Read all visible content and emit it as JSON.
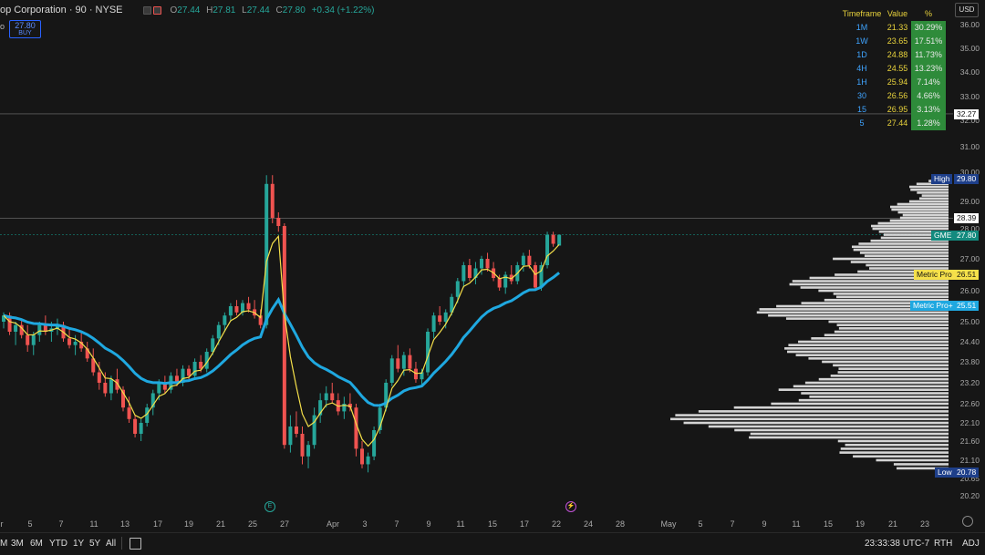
{
  "header": {
    "symbol_text": "op Corporation · 90 · NYSE",
    "ohlc": {
      "o_label": "O",
      "o": "27.44",
      "h_label": "H",
      "h": "27.81",
      "l_label": "L",
      "l": "27.44",
      "c_label": "C",
      "c": "27.80",
      "change": "+0.34 (+1.22%)"
    }
  },
  "side_label": "o",
  "buy_box": {
    "price": "27.80",
    "label": "BUY"
  },
  "currency_button": "USD",
  "timeframe_table": {
    "headers": [
      "Timeframe",
      "Value",
      "%"
    ],
    "rows": [
      {
        "tf": "1M",
        "value": "21.33",
        "pct": "30.29%"
      },
      {
        "tf": "1W",
        "value": "23.65",
        "pct": "17.51%"
      },
      {
        "tf": "1D",
        "value": "24.88",
        "pct": "11.73%"
      },
      {
        "tf": "4H",
        "value": "24.55",
        "pct": "13.23%"
      },
      {
        "tf": "1H",
        "value": "25.94",
        "pct": "7.14%"
      },
      {
        "tf": "30",
        "value": "26.56",
        "pct": "4.66%"
      },
      {
        "tf": "15",
        "value": "26.95",
        "pct": "3.13%"
      },
      {
        "tf": "5",
        "value": "27.44",
        "pct": "1.28%"
      }
    ]
  },
  "price_axis": {
    "ticks": [
      "36.00",
      "35.00",
      "34.00",
      "33.00",
      "32.00",
      "31.00",
      "30.00",
      "29.00",
      "28.00",
      "27.00",
      "26.00",
      "25.00",
      "24.40",
      "23.80",
      "23.20",
      "22.60",
      "22.10",
      "21.60",
      "21.10",
      "20.65",
      "20.20"
    ],
    "tags": {
      "line_32": "32.27",
      "high_label": "High",
      "high": "29.80",
      "line_28": "28.39",
      "gme_label": "GME",
      "gme": "27.80",
      "metric_pro_label": "Metric Pro",
      "metric_pro": "26.51",
      "metric_pro_plus_label": "Metric Pro+",
      "metric_pro_plus": "25.51",
      "low_label": "Low",
      "low": "20.78"
    }
  },
  "time_axis": [
    "r",
    "5",
    "7",
    "11",
    "13",
    "17",
    "19",
    "21",
    "25",
    "27",
    "Apr",
    "3",
    "7",
    "9",
    "11",
    "15",
    "17",
    "22",
    "24",
    "28",
    "May",
    "5",
    "7",
    "9",
    "11",
    "15",
    "19",
    "21",
    "23"
  ],
  "events": {
    "earnings": "E",
    "dividend": "⚡"
  },
  "bottom_bar": {
    "ranges": [
      "M",
      "3M",
      "6M",
      "YTD",
      "1Y",
      "5Y",
      "All"
    ],
    "clock": "23:33:38 UTC-7",
    "session": "RTH",
    "adj": "ADJ"
  },
  "colors": {
    "bg": "#161616",
    "up": "#26a69a",
    "down": "#ef5350",
    "ma_fast": "#f5e04a",
    "ma_slow": "#1fa8e0",
    "profile": "#e6e6e6",
    "table_green": "#2e8b3a"
  },
  "chart_data": {
    "type": "candlestick",
    "price_range": [
      20.2,
      36.0
    ],
    "candles": [
      [
        25.0,
        25.3,
        24.8,
        25.2
      ],
      [
        25.2,
        25.3,
        24.6,
        24.7
      ],
      [
        24.7,
        25.0,
        24.3,
        24.9
      ],
      [
        24.9,
        25.1,
        24.5,
        24.6
      ],
      [
        24.6,
        24.9,
        24.1,
        24.3
      ],
      [
        24.3,
        24.7,
        24.0,
        24.6
      ],
      [
        24.6,
        25.0,
        24.4,
        24.9
      ],
      [
        24.9,
        25.2,
        24.6,
        24.7
      ],
      [
        24.7,
        25.0,
        24.4,
        24.8
      ],
      [
        24.8,
        25.1,
        24.6,
        24.9
      ],
      [
        24.9,
        25.0,
        24.4,
        24.5
      ],
      [
        24.5,
        24.8,
        24.2,
        24.3
      ],
      [
        24.3,
        24.6,
        24.0,
        24.4
      ],
      [
        24.4,
        24.7,
        24.1,
        24.2
      ],
      [
        24.2,
        24.4,
        23.8,
        23.9
      ],
      [
        23.9,
        24.2,
        23.4,
        23.5
      ],
      [
        23.5,
        23.8,
        23.0,
        23.2
      ],
      [
        23.2,
        23.5,
        22.8,
        22.9
      ],
      [
        22.9,
        23.4,
        22.7,
        23.3
      ],
      [
        23.3,
        23.6,
        22.9,
        23.0
      ],
      [
        23.0,
        23.1,
        22.4,
        22.5
      ],
      [
        22.5,
        22.8,
        22.1,
        22.2
      ],
      [
        22.2,
        22.3,
        21.7,
        21.8
      ],
      [
        21.8,
        22.2,
        21.6,
        22.1
      ],
      [
        22.1,
        22.6,
        22.0,
        22.5
      ],
      [
        22.5,
        23.0,
        22.3,
        22.9
      ],
      [
        22.9,
        23.3,
        22.7,
        23.2
      ],
      [
        23.2,
        23.4,
        22.9,
        23.0
      ],
      [
        23.0,
        23.5,
        22.9,
        23.4
      ],
      [
        23.4,
        23.6,
        23.1,
        23.2
      ],
      [
        23.2,
        23.7,
        23.1,
        23.6
      ],
      [
        23.6,
        23.7,
        23.3,
        23.4
      ],
      [
        23.4,
        23.9,
        23.3,
        23.8
      ],
      [
        23.8,
        24.0,
        23.5,
        23.6
      ],
      [
        23.6,
        24.2,
        23.5,
        24.1
      ],
      [
        24.1,
        24.6,
        24.0,
        24.5
      ],
      [
        24.5,
        25.0,
        24.3,
        24.9
      ],
      [
        24.9,
        25.3,
        24.7,
        25.2
      ],
      [
        25.2,
        25.6,
        25.0,
        25.5
      ],
      [
        25.5,
        25.7,
        25.2,
        25.3
      ],
      [
        25.3,
        25.7,
        25.2,
        25.6
      ],
      [
        25.6,
        25.8,
        25.3,
        25.4
      ],
      [
        25.4,
        25.7,
        25.1,
        25.2
      ],
      [
        25.2,
        25.4,
        24.8,
        24.9
      ],
      [
        24.9,
        29.9,
        24.8,
        29.6
      ],
      [
        29.6,
        29.9,
        28.2,
        28.4
      ],
      [
        28.4,
        28.6,
        27.9,
        28.1
      ],
      [
        28.1,
        28.2,
        21.4,
        21.5
      ],
      [
        21.5,
        22.3,
        21.3,
        22.0
      ],
      [
        22.0,
        22.4,
        21.7,
        21.8
      ],
      [
        21.8,
        22.0,
        21.0,
        21.2
      ],
      [
        21.2,
        21.6,
        20.9,
        21.5
      ],
      [
        21.5,
        22.5,
        21.4,
        22.3
      ],
      [
        22.3,
        22.9,
        22.1,
        22.7
      ],
      [
        22.7,
        23.1,
        22.5,
        22.9
      ],
      [
        22.9,
        23.2,
        22.6,
        22.7
      ],
      [
        22.7,
        22.9,
        22.3,
        22.4
      ],
      [
        22.4,
        22.8,
        22.2,
        22.6
      ],
      [
        22.6,
        22.9,
        22.4,
        22.5
      ],
      [
        22.5,
        22.6,
        21.2,
        21.4
      ],
      [
        21.4,
        21.6,
        20.9,
        21.0
      ],
      [
        21.0,
        21.3,
        20.8,
        21.2
      ],
      [
        21.2,
        22.0,
        21.1,
        21.9
      ],
      [
        21.9,
        22.6,
        21.8,
        22.5
      ],
      [
        22.5,
        23.3,
        22.4,
        23.2
      ],
      [
        23.2,
        24.0,
        23.1,
        23.9
      ],
      [
        23.9,
        24.3,
        23.5,
        23.6
      ],
      [
        23.6,
        24.1,
        23.4,
        24.0
      ],
      [
        24.0,
        24.2,
        23.5,
        23.6
      ],
      [
        23.6,
        23.8,
        23.2,
        23.3
      ],
      [
        23.3,
        23.6,
        23.1,
        23.5
      ],
      [
        23.5,
        24.8,
        23.4,
        24.7
      ],
      [
        24.7,
        25.3,
        24.5,
        25.2
      ],
      [
        25.2,
        25.5,
        24.9,
        25.0
      ],
      [
        25.0,
        25.4,
        24.8,
        25.3
      ],
      [
        25.3,
        25.9,
        25.2,
        25.8
      ],
      [
        25.8,
        26.4,
        25.6,
        26.3
      ],
      [
        26.3,
        26.9,
        26.1,
        26.8
      ],
      [
        26.8,
        27.0,
        26.3,
        26.4
      ],
      [
        26.4,
        26.9,
        26.2,
        26.7
      ],
      [
        26.7,
        27.1,
        26.5,
        27.0
      ],
      [
        27.0,
        27.2,
        26.6,
        26.7
      ],
      [
        26.7,
        26.9,
        26.3,
        26.4
      ],
      [
        26.4,
        26.5,
        26.0,
        26.1
      ],
      [
        26.1,
        26.6,
        25.9,
        26.5
      ],
      [
        26.5,
        26.8,
        26.2,
        26.3
      ],
      [
        26.3,
        26.9,
        26.2,
        26.8
      ],
      [
        26.8,
        27.2,
        26.6,
        27.1
      ],
      [
        27.1,
        27.3,
        26.7,
        26.8
      ],
      [
        26.8,
        26.9,
        26.0,
        26.1
      ],
      [
        26.1,
        26.9,
        26.0,
        26.8
      ],
      [
        26.8,
        27.9,
        26.7,
        27.8
      ],
      [
        27.8,
        27.9,
        27.4,
        27.5
      ],
      [
        27.44,
        27.81,
        27.44,
        27.8
      ]
    ]
  }
}
